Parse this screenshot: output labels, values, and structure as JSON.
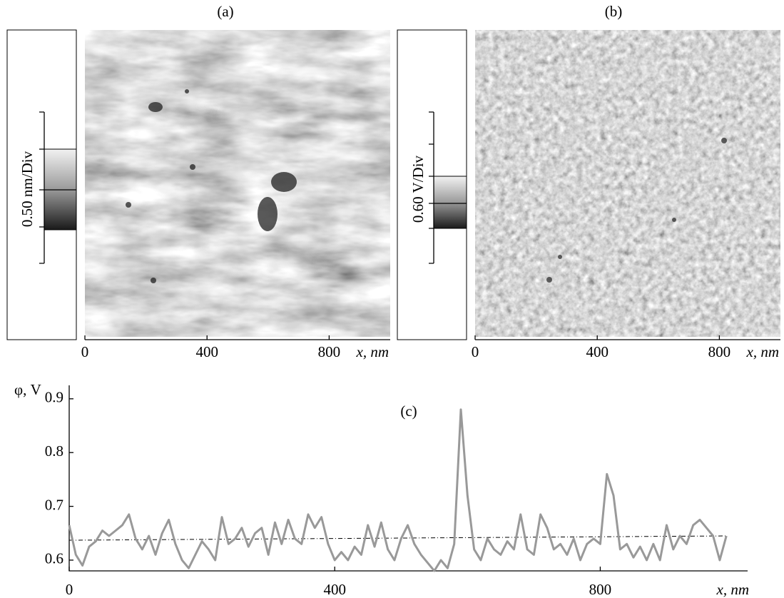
{
  "chart_data": [
    {
      "type": "image",
      "label": "(a)",
      "scale_label": "0.50 nm/Div",
      "xlim": [
        0,
        1000
      ],
      "xticks": [
        0,
        400,
        800
      ],
      "xlabel": "x, nm"
    },
    {
      "type": "image",
      "label": "(b)",
      "scale_label": "0.60 V/Div",
      "xlim": [
        0,
        1000
      ],
      "xticks": [
        0,
        400,
        800
      ],
      "xlabel": "x, nm"
    },
    {
      "type": "line",
      "label": "(c)",
      "ylabel": "φ, V",
      "xlabel": "x, nm",
      "xlim": [
        0,
        1022
      ],
      "ylim": [
        0.58,
        0.925
      ],
      "xticks": [
        0,
        400,
        800
      ],
      "yticks": [
        0.6,
        0.7,
        0.8,
        0.9
      ],
      "x": [
        0,
        10,
        20,
        30,
        40,
        50,
        60,
        70,
        80,
        90,
        100,
        110,
        120,
        130,
        140,
        150,
        160,
        170,
        180,
        190,
        200,
        210,
        220,
        230,
        240,
        250,
        260,
        270,
        280,
        290,
        300,
        310,
        320,
        330,
        340,
        350,
        360,
        370,
        380,
        390,
        400,
        410,
        420,
        430,
        440,
        450,
        460,
        470,
        480,
        490,
        500,
        510,
        520,
        530,
        540,
        550,
        560,
        570,
        580,
        590,
        600,
        610,
        620,
        630,
        640,
        650,
        660,
        670,
        680,
        690,
        700,
        710,
        720,
        730,
        740,
        750,
        760,
        770,
        780,
        790,
        800,
        810,
        820,
        830,
        840,
        850,
        860,
        870,
        880,
        890,
        900,
        910,
        920,
        930,
        940,
        950,
        960,
        970,
        980,
        990
      ],
      "series": [
        {
          "color": "#999999",
          "values": [
            0.665,
            0.61,
            0.59,
            0.625,
            0.635,
            0.655,
            0.645,
            0.655,
            0.665,
            0.685,
            0.64,
            0.62,
            0.645,
            0.61,
            0.65,
            0.675,
            0.63,
            0.6,
            0.585,
            0.61,
            0.635,
            0.62,
            0.6,
            0.68,
            0.63,
            0.64,
            0.66,
            0.625,
            0.65,
            0.66,
            0.61,
            0.67,
            0.63,
            0.675,
            0.64,
            0.63,
            0.685,
            0.66,
            0.68,
            0.63,
            0.6,
            0.615,
            0.6,
            0.625,
            0.61,
            0.665,
            0.625,
            0.67,
            0.62,
            0.6,
            0.64,
            0.665,
            0.63,
            0.61,
            0.595,
            0.58,
            0.6,
            0.585,
            0.63,
            0.88,
            0.72,
            0.62,
            0.6,
            0.64,
            0.62,
            0.61,
            0.635,
            0.62,
            0.685,
            0.62,
            0.61,
            0.685,
            0.66,
            0.62,
            0.63,
            0.61,
            0.64,
            0.6,
            0.63,
            0.64,
            0.63,
            0.76,
            0.72,
            0.62,
            0.63,
            0.605,
            0.625,
            0.6,
            0.63,
            0.6,
            0.665,
            0.62,
            0.645,
            0.63,
            0.665,
            0.675,
            0.66,
            0.645,
            0.6,
            0.645
          ]
        }
      ],
      "reference_line": {
        "x": [
          0,
          990
        ],
        "values": [
          0.637,
          0.645
        ],
        "color": "#000000"
      }
    }
  ]
}
